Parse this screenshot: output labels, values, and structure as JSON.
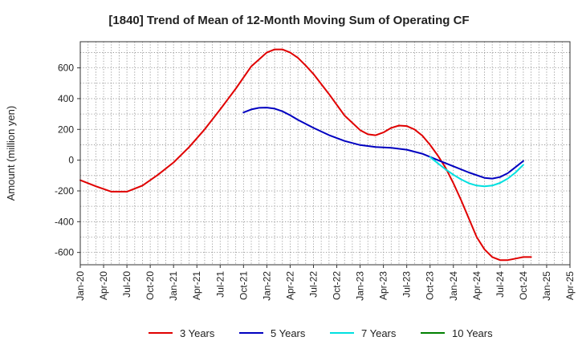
{
  "chart_data": {
    "type": "line",
    "title": "[1840]  Trend of Mean of 12-Month Moving Sum of Operating CF",
    "xlabel": "",
    "ylabel": "Amount (million yen)",
    "ylim": [
      -680,
      770
    ],
    "yticks": [
      -600,
      -400,
      -200,
      0,
      200,
      400,
      600
    ],
    "ytick_labels": [
      "-600",
      "-400",
      "-200",
      "0",
      "200",
      "400",
      "600"
    ],
    "xtick_labels": [
      "Jan-20",
      "Apr-20",
      "Jul-20",
      "Oct-20",
      "Jan-21",
      "Apr-21",
      "Jul-21",
      "Oct-21",
      "Jan-22",
      "Apr-22",
      "Jul-22",
      "Oct-22",
      "Jan-23",
      "Apr-23",
      "Jul-23",
      "Oct-23",
      "Jan-24",
      "Apr-24",
      "Jul-24",
      "Oct-24",
      "Jan-25",
      "Apr-25"
    ],
    "x_unit": "month index (0 = Jan-20, 63 = Apr-25)",
    "xlim": [
      0,
      63
    ],
    "grid": true,
    "legend_position": "bottom",
    "series": [
      {
        "name": "3 Years",
        "color": "#e00000",
        "x": [
          0,
          2,
          4,
          6,
          8,
          10,
          12,
          14,
          16,
          18,
          20,
          22,
          24,
          25,
          26,
          27,
          28,
          29,
          30,
          32,
          34,
          36,
          37,
          38,
          39,
          40,
          41,
          42,
          43,
          44,
          45,
          46,
          47,
          48,
          49,
          50,
          51,
          52,
          53,
          54,
          55,
          56,
          57,
          58
        ],
        "values": [
          -130,
          -170,
          -205,
          -205,
          -165,
          -95,
          -15,
          85,
          200,
          330,
          465,
          610,
          700,
          720,
          720,
          700,
          665,
          615,
          560,
          430,
          290,
          195,
          168,
          162,
          180,
          210,
          225,
          222,
          200,
          160,
          100,
          30,
          -50,
          -150,
          -260,
          -380,
          -500,
          -580,
          -630,
          -650,
          -650,
          -640,
          -630,
          -630
        ]
      },
      {
        "name": "5 Years",
        "color": "#0000c0",
        "x": [
          21,
          22,
          23,
          24,
          25,
          26,
          27,
          28,
          30,
          32,
          34,
          36,
          38,
          40,
          42,
          44,
          46,
          48,
          50,
          52,
          53,
          54,
          55,
          56,
          57
        ],
        "values": [
          310,
          330,
          340,
          342,
          335,
          318,
          292,
          262,
          210,
          163,
          125,
          98,
          85,
          80,
          68,
          42,
          0,
          -40,
          -80,
          -115,
          -120,
          -110,
          -85,
          -45,
          -5
        ]
      },
      {
        "name": "7 Years",
        "color": "#00e0e0",
        "x": [
          45,
          46,
          47,
          48,
          49,
          50,
          51,
          52,
          53,
          54,
          55,
          56,
          57
        ],
        "values": [
          20,
          -20,
          -60,
          -95,
          -125,
          -150,
          -165,
          -170,
          -165,
          -148,
          -120,
          -80,
          -30
        ]
      },
      {
        "name": "10 Years",
        "color": "#008000",
        "x": [],
        "values": []
      }
    ]
  }
}
